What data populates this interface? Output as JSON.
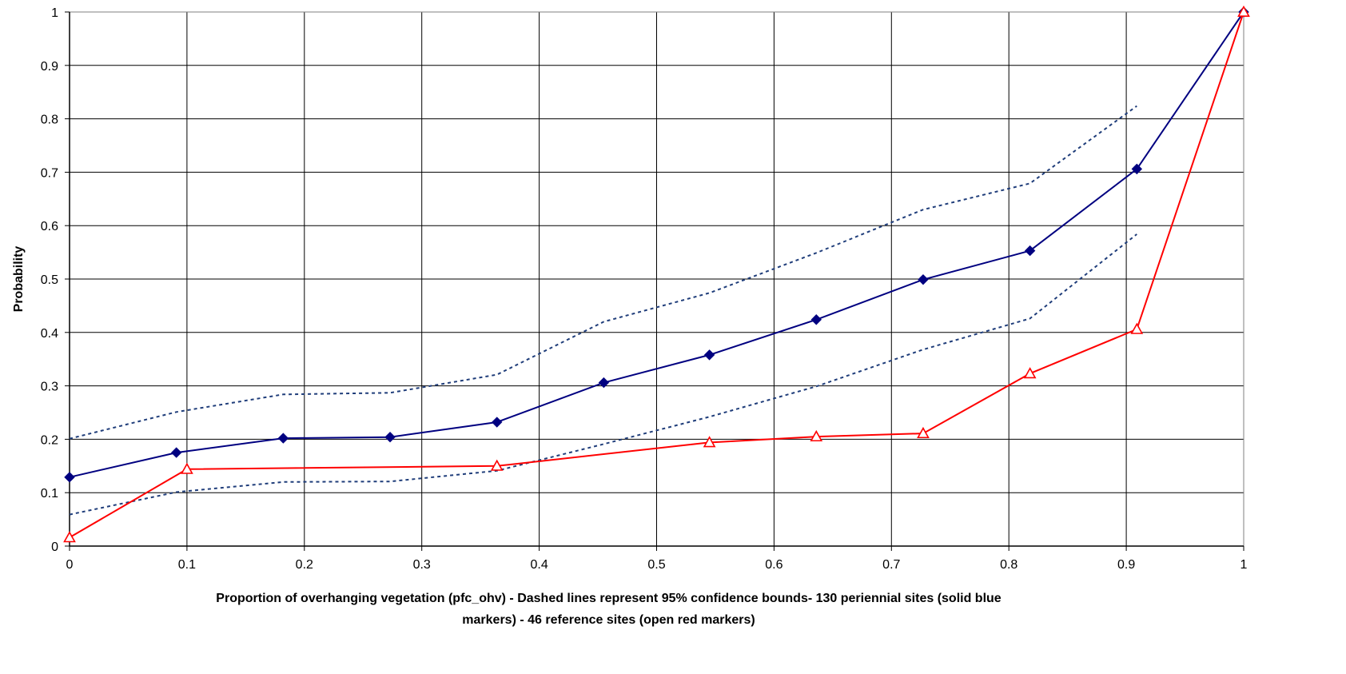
{
  "chart_data": {
    "type": "line",
    "title": "",
    "xlabel_lines": [
      "Proportion of overhanging vegetation (pfc_ohv) - Dashed lines represent 95% confidence bounds- 130 periennial sites (solid blue",
      "markers) - 46 reference sites (open red markers)"
    ],
    "ylabel": "Probability",
    "xlim": [
      0,
      1
    ],
    "ylim": [
      0,
      1
    ],
    "x_ticks": [
      "0",
      "0.1",
      "0.2",
      "0.3",
      "0.4",
      "0.5",
      "0.6",
      "0.7",
      "0.8",
      "0.9",
      "1"
    ],
    "y_ticks": [
      "0",
      "0.1",
      "0.2",
      "0.3",
      "0.4",
      "0.5",
      "0.6",
      "0.7",
      "0.8",
      "0.9",
      "1"
    ],
    "grid": true,
    "legend": "none",
    "series": [
      {
        "style": "solid",
        "marker": "filled-diamond",
        "color": "#000080",
        "x": [
          0,
          0.091,
          0.182,
          0.273,
          0.364,
          0.455,
          0.545,
          0.636,
          0.727,
          0.818,
          0.909,
          1.0
        ],
        "y": [
          0.129,
          0.175,
          0.202,
          0.204,
          0.232,
          0.306,
          0.358,
          0.424,
          0.499,
          0.553,
          0.706,
          1.0
        ]
      },
      {
        "style": "dashed",
        "marker": "none",
        "color": "#1f3d7a",
        "x": [
          0,
          0.091,
          0.182,
          0.273,
          0.364,
          0.455,
          0.545,
          0.636,
          0.727,
          0.818,
          0.909
        ],
        "y": [
          0.201,
          0.251,
          0.284,
          0.287,
          0.321,
          0.42,
          0.474,
          0.549,
          0.63,
          0.679,
          0.824
        ]
      },
      {
        "style": "dashed",
        "marker": "none",
        "color": "#1f3d7a",
        "x": [
          0,
          0.091,
          0.182,
          0.273,
          0.364,
          0.455,
          0.545,
          0.636,
          0.727,
          0.818,
          0.909
        ],
        "y": [
          0.059,
          0.101,
          0.12,
          0.121,
          0.141,
          0.191,
          0.242,
          0.299,
          0.368,
          0.426,
          0.584
        ]
      },
      {
        "style": "solid",
        "marker": "open-triangle",
        "color": "#ff0000",
        "x": [
          0,
          0.1,
          0.364,
          0.545,
          0.636,
          0.727,
          0.818,
          0.909,
          1.0
        ],
        "y": [
          0.016,
          0.144,
          0.15,
          0.194,
          0.205,
          0.211,
          0.323,
          0.406,
          1.0
        ]
      }
    ]
  }
}
